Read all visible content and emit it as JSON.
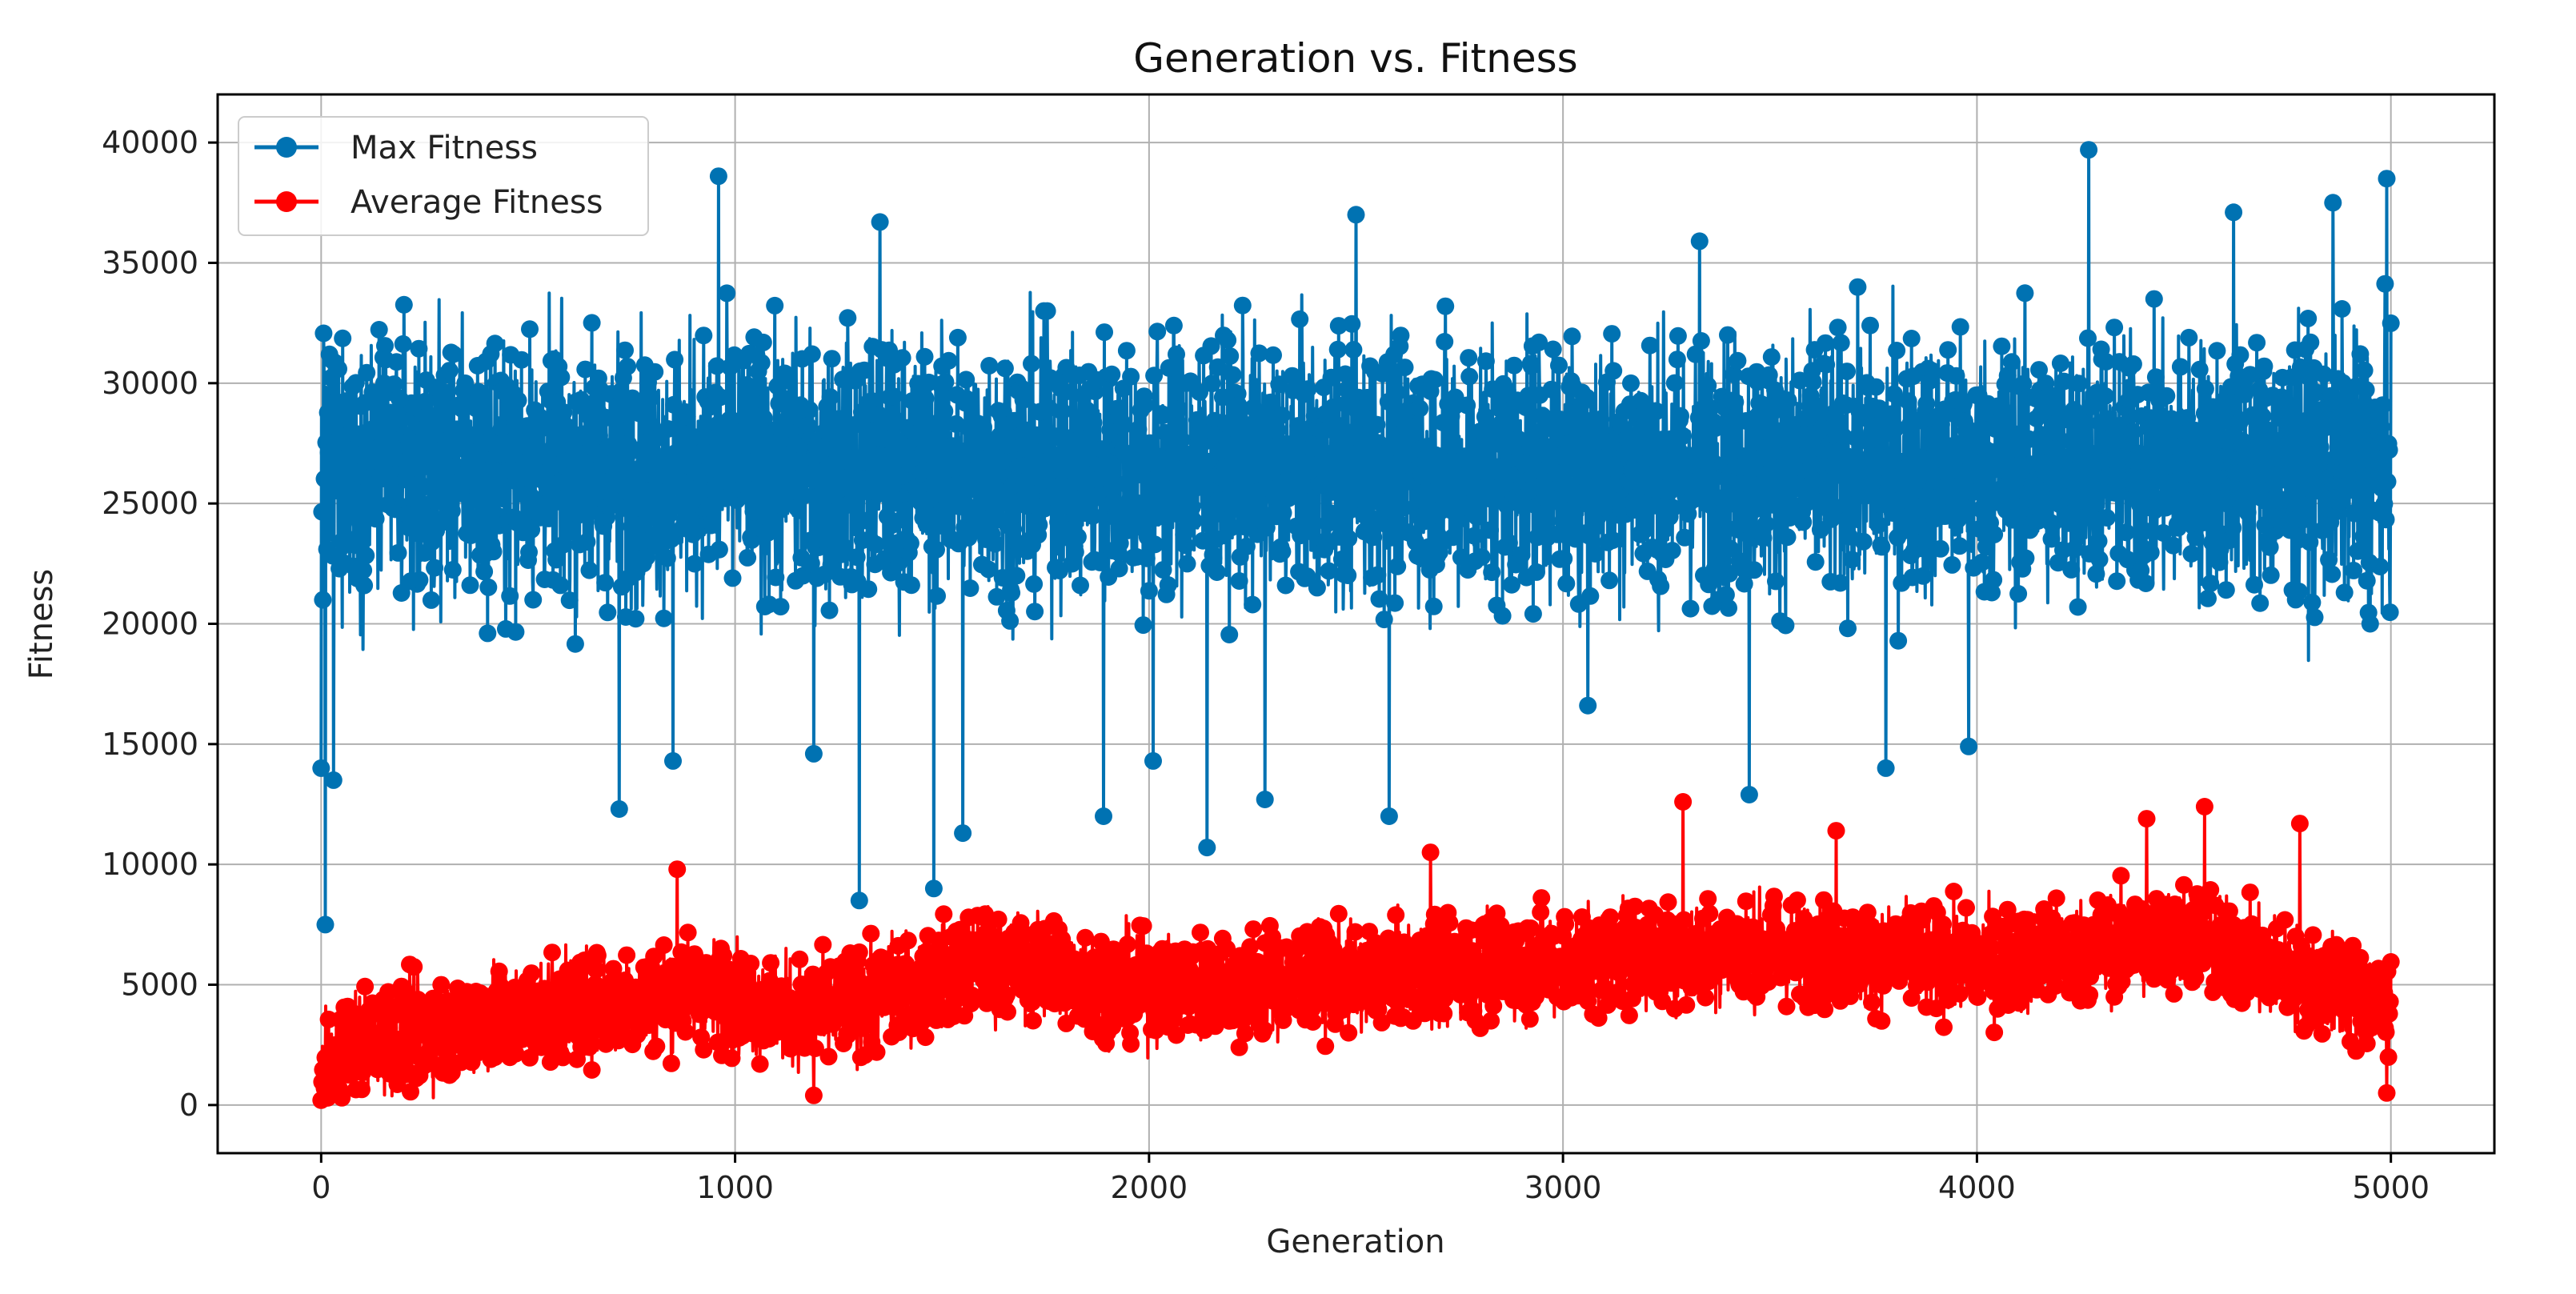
{
  "chart_data": {
    "type": "line",
    "title": "Generation vs. Fitness",
    "xlabel": "Generation",
    "ylabel": "Fitness",
    "xlim": [
      -250,
      5250
    ],
    "ylim": [
      -2000,
      42000
    ],
    "x_ticks": [
      0,
      1000,
      2000,
      3000,
      4000,
      5000
    ],
    "y_ticks": [
      0,
      5000,
      10000,
      15000,
      20000,
      25000,
      30000,
      35000,
      40000
    ],
    "grid": true,
    "legend_position": "top-left",
    "x_range": [
      0,
      5000
    ],
    "series": [
      {
        "name": "Max Fitness",
        "color": "#0072b2",
        "marker": "circle",
        "center": 26500,
        "spread": 4500,
        "clip": [
          17000,
          35000
        ],
        "highlights": [
          {
            "x": 0,
            "y": 14000
          },
          {
            "x": 10,
            "y": 7500
          },
          {
            "x": 30,
            "y": 13500
          },
          {
            "x": 960,
            "y": 38600
          },
          {
            "x": 720,
            "y": 12300
          },
          {
            "x": 850,
            "y": 14300
          },
          {
            "x": 1300,
            "y": 8500
          },
          {
            "x": 1350,
            "y": 36700
          },
          {
            "x": 1480,
            "y": 9000
          },
          {
            "x": 1550,
            "y": 11300
          },
          {
            "x": 1890,
            "y": 12000
          },
          {
            "x": 2140,
            "y": 10700
          },
          {
            "x": 2500,
            "y": 37000
          },
          {
            "x": 2580,
            "y": 12000
          },
          {
            "x": 3330,
            "y": 35900
          },
          {
            "x": 3450,
            "y": 12900
          },
          {
            "x": 3980,
            "y": 14900
          },
          {
            "x": 4270,
            "y": 39700
          },
          {
            "x": 4620,
            "y": 37100
          },
          {
            "x": 4860,
            "y": 37500
          },
          {
            "x": 4990,
            "y": 38500
          },
          {
            "x": 4950,
            "y": 20000
          },
          {
            "x": 3780,
            "y": 14000
          },
          {
            "x": 1190,
            "y": 14600
          },
          {
            "x": 2010,
            "y": 14300
          },
          {
            "x": 2280,
            "y": 12700
          },
          {
            "x": 3060,
            "y": 16600
          }
        ]
      },
      {
        "name": "Average Fitness",
        "color": "#ff0000",
        "marker": "circle",
        "trend": [
          [
            0,
            500
          ],
          [
            50,
            2500
          ],
          [
            500,
            3800
          ],
          [
            900,
            4800
          ],
          [
            1200,
            3700
          ],
          [
            1600,
            6000
          ],
          [
            2000,
            4800
          ],
          [
            2500,
            5300
          ],
          [
            3000,
            6000
          ],
          [
            3500,
            6500
          ],
          [
            4000,
            5800
          ],
          [
            4500,
            7000
          ],
          [
            5000,
            4000
          ]
        ],
        "spread": 1800,
        "clip": [
          300,
          11000
        ],
        "highlights": [
          {
            "x": 0,
            "y": 200
          },
          {
            "x": 860,
            "y": 9800
          },
          {
            "x": 1190,
            "y": 400
          },
          {
            "x": 3290,
            "y": 12600
          },
          {
            "x": 3660,
            "y": 11400
          },
          {
            "x": 4410,
            "y": 11900
          },
          {
            "x": 4550,
            "y": 12400
          },
          {
            "x": 4990,
            "y": 500
          },
          {
            "x": 2680,
            "y": 10500
          },
          {
            "x": 4780,
            "y": 11700
          }
        ]
      }
    ]
  }
}
